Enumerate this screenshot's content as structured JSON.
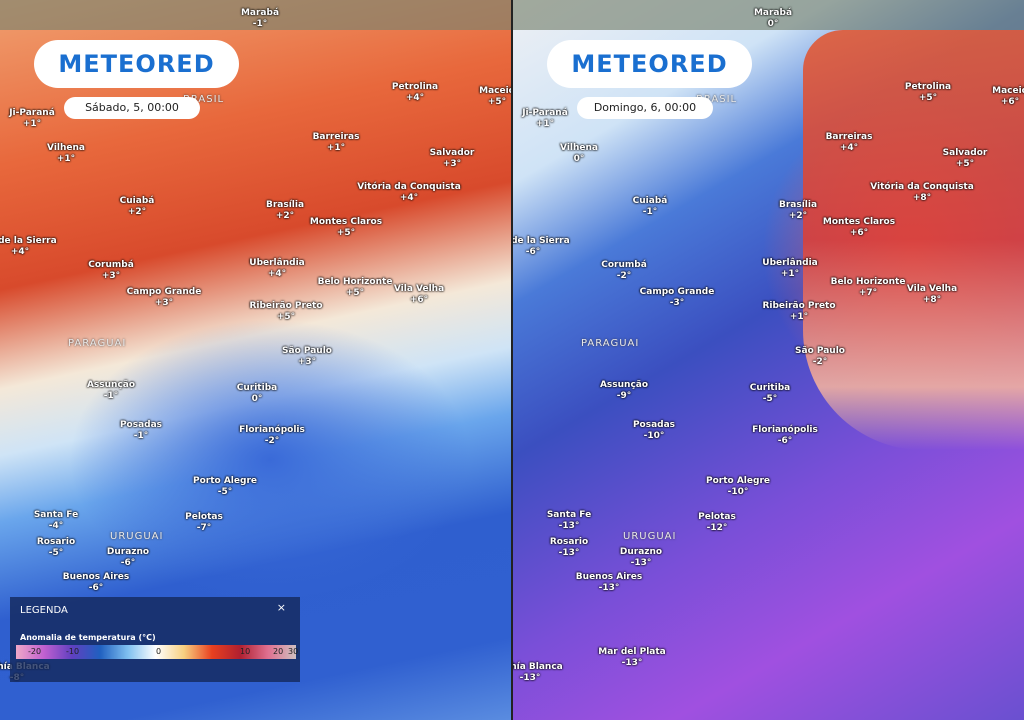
{
  "brand": "METEORED",
  "panels": [
    {
      "date": "Sábado, 5, 00:00",
      "countries": [
        "BRASIL",
        "PARAGUAI",
        "URUGUAI"
      ],
      "cities": [
        {
          "name": "Marabá",
          "value": "-1°"
        },
        {
          "name": "Petrolina",
          "value": "+4°"
        },
        {
          "name": "Maceió",
          "value": "+5°"
        },
        {
          "name": "Ji-Paraná",
          "value": "+1°"
        },
        {
          "name": "Barreiras",
          "value": "+1°"
        },
        {
          "name": "Salvador",
          "value": "+3°"
        },
        {
          "name": "Vilhena",
          "value": "+1°"
        },
        {
          "name": "Cuiabá",
          "value": "+2°"
        },
        {
          "name": "Brasília",
          "value": "+2°"
        },
        {
          "name": "Vitória da Conquista",
          "value": "+4°"
        },
        {
          "name": "Montes Claros",
          "value": "+5°"
        },
        {
          "name": "uz de la Sierra",
          "value": "+4°"
        },
        {
          "name": "Corumbá",
          "value": "+3°"
        },
        {
          "name": "Uberlândia",
          "value": "+4°"
        },
        {
          "name": "Belo Horizonte",
          "value": "+5°"
        },
        {
          "name": "Campo Grande",
          "value": "+3°"
        },
        {
          "name": "Ribeirão Preto",
          "value": "+5°"
        },
        {
          "name": "Vila Velha",
          "value": "+6°"
        },
        {
          "name": "São Paulo",
          "value": "+3°"
        },
        {
          "name": "Curitiba",
          "value": "0°"
        },
        {
          "name": "Assunção",
          "value": "-1°"
        },
        {
          "name": "Posadas",
          "value": "-1°"
        },
        {
          "name": "Florianópolis",
          "value": "-2°"
        },
        {
          "name": "Porto Alegre",
          "value": "-5°"
        },
        {
          "name": "Santa Fe",
          "value": "-4°"
        },
        {
          "name": "Pelotas",
          "value": "-7°"
        },
        {
          "name": "Rosario",
          "value": "-5°"
        },
        {
          "name": "Durazno",
          "value": "-6°"
        },
        {
          "name": "Buenos Aires",
          "value": "-6°"
        },
        {
          "name": "Bahía Blanca",
          "value": "-8°"
        }
      ]
    },
    {
      "date": "Domingo, 6, 00:00",
      "countries": [
        "BRASIL",
        "PARAGUAI",
        "URUGUAI"
      ],
      "cities": [
        {
          "name": "Marabá",
          "value": "0°"
        },
        {
          "name": "Petrolina",
          "value": "+5°"
        },
        {
          "name": "Maceió",
          "value": "+6°"
        },
        {
          "name": "Ji-Paraná",
          "value": "+1°"
        },
        {
          "name": "Barreiras",
          "value": "+4°"
        },
        {
          "name": "Salvador",
          "value": "+5°"
        },
        {
          "name": "Vilhena",
          "value": "0°"
        },
        {
          "name": "Cuiabá",
          "value": "-1°"
        },
        {
          "name": "Brasília",
          "value": "+2°"
        },
        {
          "name": "Vitória da Conquista",
          "value": "+8°"
        },
        {
          "name": "Montes Claros",
          "value": "+6°"
        },
        {
          "name": "uz de la Sierra",
          "value": "-6°"
        },
        {
          "name": "Corumbá",
          "value": "-2°"
        },
        {
          "name": "Uberlândia",
          "value": "+1°"
        },
        {
          "name": "Belo Horizonte",
          "value": "+7°"
        },
        {
          "name": "Campo Grande",
          "value": "-3°"
        },
        {
          "name": "Ribeirão Preto",
          "value": "+1°"
        },
        {
          "name": "Vila Velha",
          "value": "+8°"
        },
        {
          "name": "São Paulo",
          "value": "-2°"
        },
        {
          "name": "Curitiba",
          "value": "-5°"
        },
        {
          "name": "Assunção",
          "value": "-9°"
        },
        {
          "name": "Posadas",
          "value": "-10°"
        },
        {
          "name": "Florianópolis",
          "value": "-6°"
        },
        {
          "name": "Porto Alegre",
          "value": "-10°"
        },
        {
          "name": "Santa Fe",
          "value": "-13°"
        },
        {
          "name": "Pelotas",
          "value": "-12°"
        },
        {
          "name": "Rosario",
          "value": "-13°"
        },
        {
          "name": "Durazno",
          "value": "-13°"
        },
        {
          "name": "Buenos Aires",
          "value": "-13°"
        },
        {
          "name": "Bahía Blanca",
          "value": "-13°"
        },
        {
          "name": "Mar del Plata",
          "value": "-13°"
        }
      ]
    }
  ],
  "legend": {
    "title": "LEGENDA",
    "close": "×",
    "subtitle": "Anomalia de temperatura (°C)",
    "scale": [
      "-20",
      "-10",
      "0",
      "10",
      "20",
      "30"
    ]
  }
}
